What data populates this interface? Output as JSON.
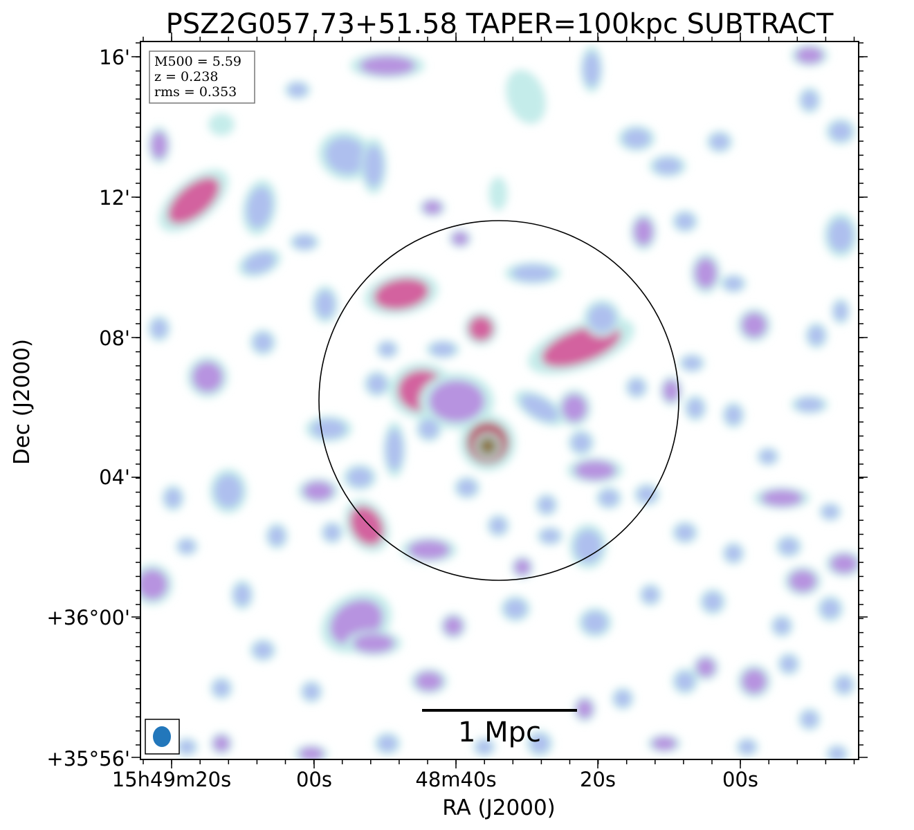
{
  "title": "PSZ2G057.73+51.58 TAPER=100kpc SUBTRACT",
  "info_box": {
    "lines": [
      "M500 = 5.59",
      "z = 0.238",
      "rms = 0.353"
    ]
  },
  "axes": {
    "xlabel": "RA (J2000)",
    "ylabel": "Dec (J2000)",
    "x_ticks": [
      "15h49m20s",
      "00s",
      "48m40s",
      "20s",
      "00s"
    ],
    "y_ticks": [
      "16'",
      "12'",
      "08'",
      "04'",
      "+36°00'",
      "+35°56'"
    ]
  },
  "scale_bar": {
    "label": "1 Mpc"
  },
  "colors": {
    "faint": "#c4ecea",
    "low": "#aebfee",
    "mid": "#b793e0",
    "high": "#d3629f",
    "peak": "#b85a6e",
    "core": "#8e7a4e",
    "beam": "#2277bb",
    "frame": "#000000"
  }
}
